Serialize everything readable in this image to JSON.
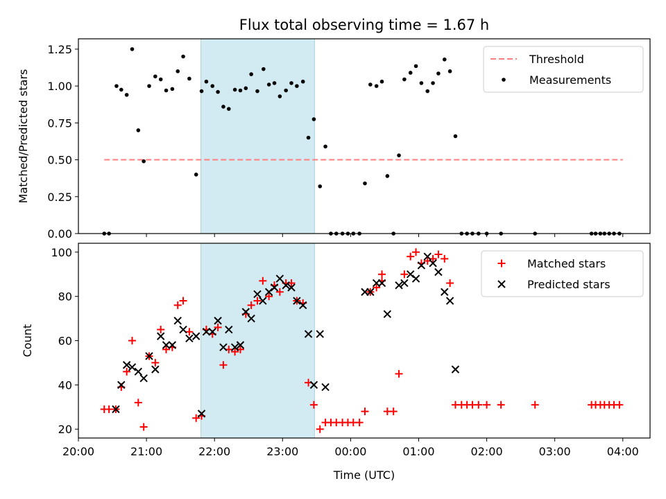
{
  "figure": {
    "title": "Flux total observing time = 1.67 h"
  },
  "chart_data": [
    {
      "type": "scatter",
      "panel": "top",
      "title": "Flux total observing time = 1.67 h",
      "xlabel": "",
      "ylabel": "Matched/Predicted stars",
      "x_unit": "hours since 20:00 UTC",
      "xlim": [
        0,
        8.4
      ],
      "ylim": [
        0,
        1.32
      ],
      "yticks": [
        0.0,
        0.25,
        0.5,
        0.75,
        1.0,
        1.25
      ],
      "ytick_labels": [
        "0.00",
        "0.25",
        "0.50",
        "0.75",
        "1.00",
        "1.25"
      ],
      "xticks": [
        1,
        2,
        3,
        4,
        5,
        6,
        7,
        8
      ],
      "legend_position": "top-right",
      "shaded_interval": {
        "x": [
          1.8,
          3.47
        ],
        "color": "#add8e6"
      },
      "threshold": {
        "name": "Threshold",
        "y": 0.5,
        "x": [
          0.38,
          8.0
        ],
        "color": "#ff7f7f",
        "style": "dashed"
      },
      "series": [
        {
          "name": "Measurements",
          "color": "#000000",
          "marker": "dot",
          "points": [
            [
              0.38,
              0.0
            ],
            [
              0.45,
              0.0
            ],
            [
              0.56,
              1.0
            ],
            [
              0.63,
              0.975
            ],
            [
              0.71,
              0.94
            ],
            [
              0.79,
              1.25
            ],
            [
              0.88,
              0.7
            ],
            [
              0.96,
              0.49
            ],
            [
              1.04,
              1.0
            ],
            [
              1.13,
              1.065
            ],
            [
              1.21,
              1.045
            ],
            [
              1.29,
              0.97
            ],
            [
              1.38,
              0.98
            ],
            [
              1.46,
              1.1
            ],
            [
              1.54,
              1.2
            ],
            [
              1.63,
              1.05
            ],
            [
              1.73,
              0.4
            ],
            [
              1.81,
              0.965
            ],
            [
              1.88,
              1.03
            ],
            [
              1.97,
              1.0
            ],
            [
              2.05,
              0.96
            ],
            [
              2.13,
              0.86
            ],
            [
              2.21,
              0.845
            ],
            [
              2.3,
              0.975
            ],
            [
              2.38,
              0.97
            ],
            [
              2.46,
              0.985
            ],
            [
              2.54,
              1.08
            ],
            [
              2.63,
              0.965
            ],
            [
              2.72,
              1.115
            ],
            [
              2.8,
              1.01
            ],
            [
              2.88,
              1.02
            ],
            [
              2.96,
              0.93
            ],
            [
              3.05,
              0.97
            ],
            [
              3.13,
              1.02
            ],
            [
              3.21,
              1.0
            ],
            [
              3.3,
              1.03
            ],
            [
              3.38,
              0.65
            ],
            [
              3.46,
              0.775
            ],
            [
              3.55,
              0.32
            ],
            [
              3.63,
              0.59
            ],
            [
              3.71,
              0.0
            ],
            [
              3.79,
              0.0
            ],
            [
              3.88,
              0.0
            ],
            [
              3.96,
              0.0
            ],
            [
              4.04,
              0.0
            ],
            [
              4.13,
              0.0
            ],
            [
              4.21,
              0.34
            ],
            [
              4.29,
              1.01
            ],
            [
              4.38,
              1.0
            ],
            [
              4.46,
              1.03
            ],
            [
              4.54,
              0.39
            ],
            [
              4.63,
              0.0
            ],
            [
              4.71,
              0.53
            ],
            [
              4.79,
              1.045
            ],
            [
              4.88,
              1.09
            ],
            [
              4.96,
              1.135
            ],
            [
              5.04,
              1.02
            ],
            [
              5.13,
              0.965
            ],
            [
              5.21,
              1.02
            ],
            [
              5.29,
              1.085
            ],
            [
              5.38,
              1.18
            ],
            [
              5.46,
              1.1
            ],
            [
              5.54,
              0.66
            ],
            [
              5.63,
              0.0
            ],
            [
              5.71,
              0.0
            ],
            [
              5.79,
              0.0
            ],
            [
              5.88,
              0.0
            ],
            [
              6.0,
              0.0
            ],
            [
              6.21,
              0.0
            ],
            [
              6.71,
              0.0
            ],
            [
              7.54,
              0.0
            ],
            [
              7.6,
              0.0
            ],
            [
              7.67,
              0.0
            ],
            [
              7.73,
              0.0
            ],
            [
              7.8,
              0.0
            ],
            [
              7.87,
              0.0
            ],
            [
              7.95,
              0.0
            ]
          ]
        }
      ],
      "legend": [
        "Threshold",
        "Measurements"
      ]
    },
    {
      "type": "scatter",
      "panel": "bottom",
      "title": "",
      "xlabel": "Time (UTC)",
      "ylabel": "Count",
      "x_unit": "hours since 20:00 UTC",
      "xlim": [
        0,
        8.4
      ],
      "ylim": [
        16,
        104
      ],
      "yticks": [
        20,
        40,
        60,
        80,
        100
      ],
      "xticks": [
        0,
        1,
        2,
        3,
        4,
        5,
        6,
        7,
        8
      ],
      "xtick_labels": [
        "20:00",
        "21:00",
        "22:00",
        "23:00",
        "00:00",
        "01:00",
        "02:00",
        "03:00",
        "04:00"
      ],
      "legend_position": "top-right",
      "shaded_interval": {
        "x": [
          1.8,
          3.47
        ],
        "color": "#add8e6"
      },
      "series": [
        {
          "name": "Matched stars",
          "color": "#ff0000",
          "marker": "plus",
          "points": [
            [
              0.38,
              29
            ],
            [
              0.45,
              29
            ],
            [
              0.55,
              29
            ],
            [
              0.63,
              39
            ],
            [
              0.71,
              46
            ],
            [
              0.79,
              60
            ],
            [
              0.88,
              32
            ],
            [
              0.96,
              21
            ],
            [
              1.04,
              53
            ],
            [
              1.13,
              50
            ],
            [
              1.21,
              65
            ],
            [
              1.29,
              56
            ],
            [
              1.38,
              57
            ],
            [
              1.46,
              76
            ],
            [
              1.54,
              78
            ],
            [
              1.63,
              64
            ],
            [
              1.73,
              25
            ],
            [
              1.81,
              26
            ],
            [
              1.88,
              65
            ],
            [
              1.97,
              63
            ],
            [
              2.05,
              66
            ],
            [
              2.13,
              49
            ],
            [
              2.21,
              56
            ],
            [
              2.3,
              55
            ],
            [
              2.38,
              56
            ],
            [
              2.46,
              72
            ],
            [
              2.54,
              76
            ],
            [
              2.63,
              78
            ],
            [
              2.71,
              87
            ],
            [
              2.8,
              80
            ],
            [
              2.88,
              85
            ],
            [
              2.96,
              82
            ],
            [
              3.05,
              86
            ],
            [
              3.13,
              86
            ],
            [
              3.21,
              78
            ],
            [
              3.3,
              77
            ],
            [
              3.38,
              41
            ],
            [
              3.46,
              31
            ],
            [
              3.55,
              20
            ],
            [
              3.63,
              23
            ],
            [
              3.71,
              23
            ],
            [
              3.79,
              23
            ],
            [
              3.88,
              23
            ],
            [
              3.96,
              23
            ],
            [
              4.04,
              23
            ],
            [
              4.13,
              23
            ],
            [
              4.21,
              28
            ],
            [
              4.29,
              82
            ],
            [
              4.38,
              84
            ],
            [
              4.46,
              87
            ],
            [
              4.46,
              90
            ],
            [
              4.54,
              28
            ],
            [
              4.63,
              28
            ],
            [
              4.71,
              45
            ],
            [
              4.79,
              90
            ],
            [
              4.88,
              98
            ],
            [
              4.96,
              100
            ],
            [
              5.04,
              95
            ],
            [
              5.13,
              96
            ],
            [
              5.21,
              97
            ],
            [
              5.29,
              99
            ],
            [
              5.38,
              97
            ],
            [
              5.46,
              86
            ],
            [
              5.54,
              31
            ],
            [
              5.63,
              31
            ],
            [
              5.71,
              31
            ],
            [
              5.79,
              31
            ],
            [
              5.88,
              31
            ],
            [
              6.0,
              31
            ],
            [
              6.21,
              31
            ],
            [
              6.71,
              31
            ],
            [
              7.54,
              31
            ],
            [
              7.6,
              31
            ],
            [
              7.67,
              31
            ],
            [
              7.73,
              31
            ],
            [
              7.8,
              31
            ],
            [
              7.87,
              31
            ],
            [
              7.95,
              31
            ]
          ]
        },
        {
          "name": "Predicted stars",
          "color": "#000000",
          "marker": "x",
          "points": [
            [
              0.55,
              29
            ],
            [
              0.63,
              40
            ],
            [
              0.71,
              49
            ],
            [
              0.79,
              48
            ],
            [
              0.88,
              46
            ],
            [
              0.96,
              43
            ],
            [
              1.04,
              53
            ],
            [
              1.13,
              47
            ],
            [
              1.21,
              62
            ],
            [
              1.29,
              58
            ],
            [
              1.38,
              58
            ],
            [
              1.46,
              69
            ],
            [
              1.54,
              65
            ],
            [
              1.63,
              61
            ],
            [
              1.73,
              62
            ],
            [
              1.81,
              27
            ],
            [
              1.88,
              64
            ],
            [
              1.97,
              64
            ],
            [
              2.05,
              69
            ],
            [
              2.13,
              57
            ],
            [
              2.21,
              65
            ],
            [
              2.3,
              57
            ],
            [
              2.38,
              58
            ],
            [
              2.46,
              73
            ],
            [
              2.54,
              70
            ],
            [
              2.63,
              81
            ],
            [
              2.71,
              78
            ],
            [
              2.8,
              82
            ],
            [
              2.88,
              84
            ],
            [
              2.96,
              88
            ],
            [
              3.05,
              85
            ],
            [
              3.13,
              84
            ],
            [
              3.21,
              78
            ],
            [
              3.3,
              76
            ],
            [
              3.38,
              63
            ],
            [
              3.46,
              40
            ],
            [
              3.55,
              63
            ],
            [
              3.63,
              39
            ],
            [
              4.21,
              82
            ],
            [
              4.29,
              82
            ],
            [
              4.38,
              86
            ],
            [
              4.46,
              86
            ],
            [
              4.54,
              72
            ],
            [
              4.71,
              85
            ],
            [
              4.79,
              86
            ],
            [
              4.88,
              90
            ],
            [
              4.96,
              88
            ],
            [
              5.04,
              94
            ],
            [
              5.13,
              98
            ],
            [
              5.21,
              95
            ],
            [
              5.29,
              91
            ],
            [
              5.38,
              82
            ],
            [
              5.46,
              78
            ],
            [
              5.54,
              47
            ]
          ]
        }
      ],
      "legend": [
        "Matched stars",
        "Predicted stars"
      ]
    }
  ]
}
